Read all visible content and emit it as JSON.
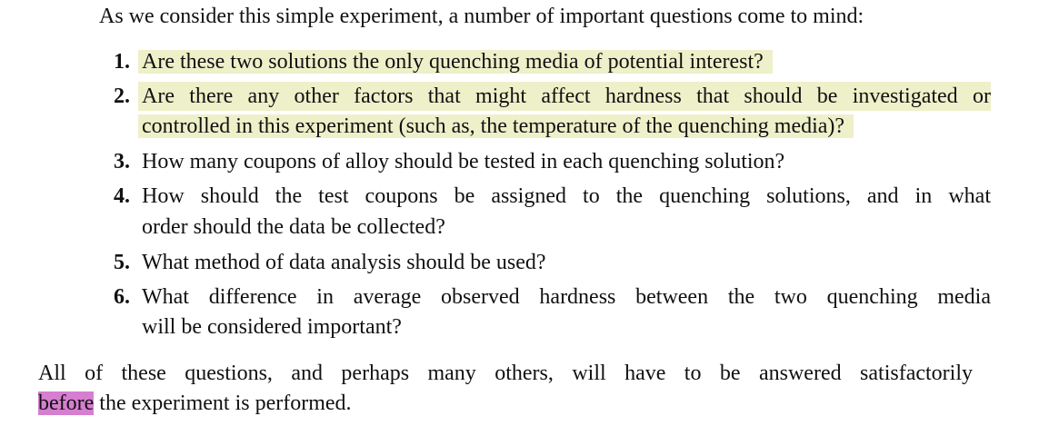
{
  "intro": "As we consider this simple experiment, a number of important questions come to mind:",
  "list": [
    {
      "number": "1.",
      "highlighted": true,
      "lines": [
        "Are these two solutions the only quenching media of potential interest?"
      ]
    },
    {
      "number": "2.",
      "highlighted": true,
      "lines": [
        "Are there any other factors that might affect hardness that should be investigated or",
        "controlled in this experiment (such as, the temperature of the quenching media)?"
      ]
    },
    {
      "number": "3.",
      "highlighted": false,
      "lines": [
        "How many coupons of alloy should be tested in each quenching solution?"
      ]
    },
    {
      "number": "4.",
      "highlighted": false,
      "lines": [
        "How should the test coupons be assigned to the quenching solutions, and in what",
        "order should the data be collected?"
      ]
    },
    {
      "number": "5.",
      "highlighted": false,
      "lines": [
        "What method of data analysis should be used?"
      ]
    },
    {
      "number": "6.",
      "highlighted": false,
      "lines": [
        "What difference in average observed hardness between the two quenching media",
        "will be considered important?"
      ]
    }
  ],
  "closing": {
    "line1": "All of these questions, and perhaps many others, will have to be answered satisfactorily",
    "highlight": "before",
    "rest": "the experiment is performed."
  }
}
